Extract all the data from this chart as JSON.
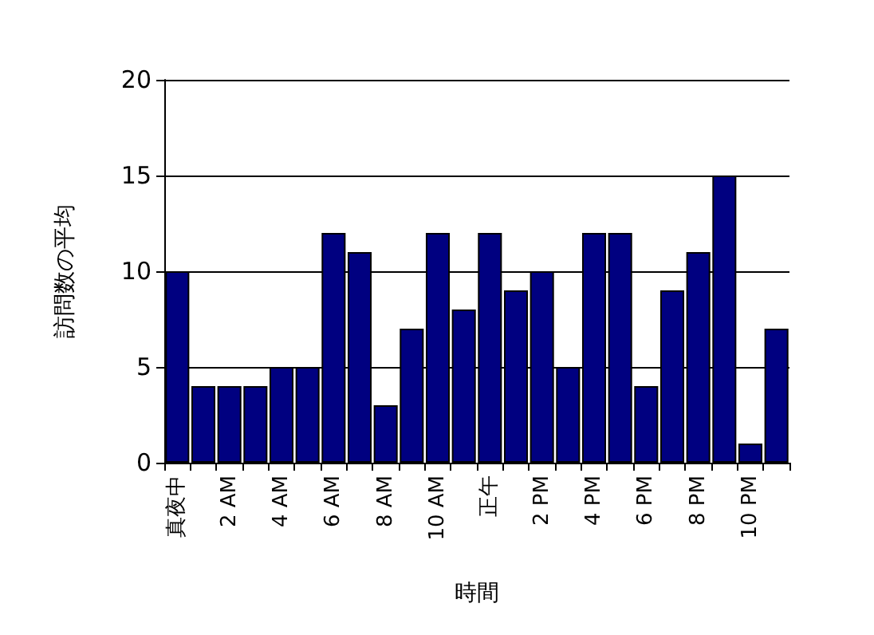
{
  "chart_data": {
    "type": "bar",
    "xlabel": "時間",
    "ylabel": "訪問数の平均",
    "categories": [
      "真夜中",
      null,
      "2 AM",
      null,
      "4 AM",
      null,
      "6 AM",
      null,
      "8 AM",
      null,
      "10 AM",
      null,
      "正午",
      null,
      "2 PM",
      null,
      "4 PM",
      null,
      "6 PM",
      null,
      "8 PM",
      null,
      "10 PM",
      null
    ],
    "values": [
      10,
      4,
      4,
      4,
      5,
      5,
      12,
      11,
      3,
      7,
      12,
      8,
      12,
      9,
      10,
      5,
      12,
      12,
      4,
      9,
      11,
      15,
      1,
      7
    ],
    "color": "#000080",
    "ylim": [
      0,
      20
    ],
    "yticks": [
      0,
      5,
      10,
      15,
      20
    ],
    "grid": "y"
  }
}
